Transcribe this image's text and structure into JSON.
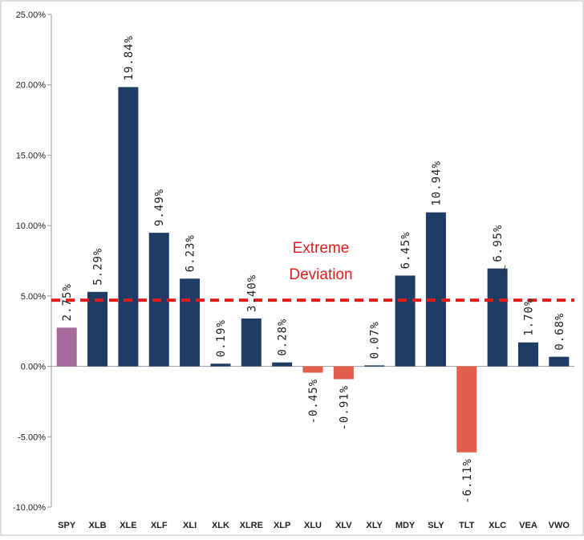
{
  "chart_data": {
    "type": "bar",
    "title": "",
    "xlabel": "",
    "ylabel": "",
    "ylim": [
      -10,
      25
    ],
    "yticks": [
      "-10.00%",
      "-5.00%",
      "0.00%",
      "5.00%",
      "10.00%",
      "15.00%",
      "20.00%",
      "25.00%"
    ],
    "categories": [
      "SPY",
      "XLB",
      "XLE",
      "XLF",
      "XLI",
      "XLK",
      "XLRE",
      "XLP",
      "XLU",
      "XLV",
      "XLY",
      "MDY",
      "SLY",
      "TLT",
      "XLC",
      "VEA",
      "VWO"
    ],
    "values": [
      2.75,
      5.29,
      19.84,
      9.49,
      6.23,
      0.19,
      3.4,
      0.28,
      -0.45,
      -0.91,
      0.07,
      6.45,
      10.94,
      -6.11,
      6.95,
      1.7,
      0.68
    ],
    "data_labels": [
      "2.75%",
      "5.29%",
      "19.84%",
      "9.49%",
      "6.23%",
      "0.19%",
      "3.40%",
      "0.28%",
      "-0.45%",
      "-0.91%",
      "0.07%",
      "6.45%",
      "10.94%",
      "-6.11%",
      "6.95%",
      "1.70%",
      "0.68%"
    ],
    "bar_colors": [
      "#a76c9e",
      "#1f3c66",
      "#1f3c66",
      "#1f3c66",
      "#1f3c66",
      "#1f3c66",
      "#1f3c66",
      "#1f3c66",
      "#e35d4a",
      "#e35d4a",
      "#1f3c66",
      "#1f3c66",
      "#1f3c66",
      "#e35d4a",
      "#1f3c66",
      "#1f3c66",
      "#1f3c66"
    ],
    "reference_line": {
      "value": 4.7,
      "color": "#e31b1b",
      "style": "dashed"
    },
    "annotation": {
      "lines": [
        "Extreme",
        "Deviation"
      ],
      "color": "#e31b1b"
    },
    "grid": false,
    "legend": "none"
  }
}
